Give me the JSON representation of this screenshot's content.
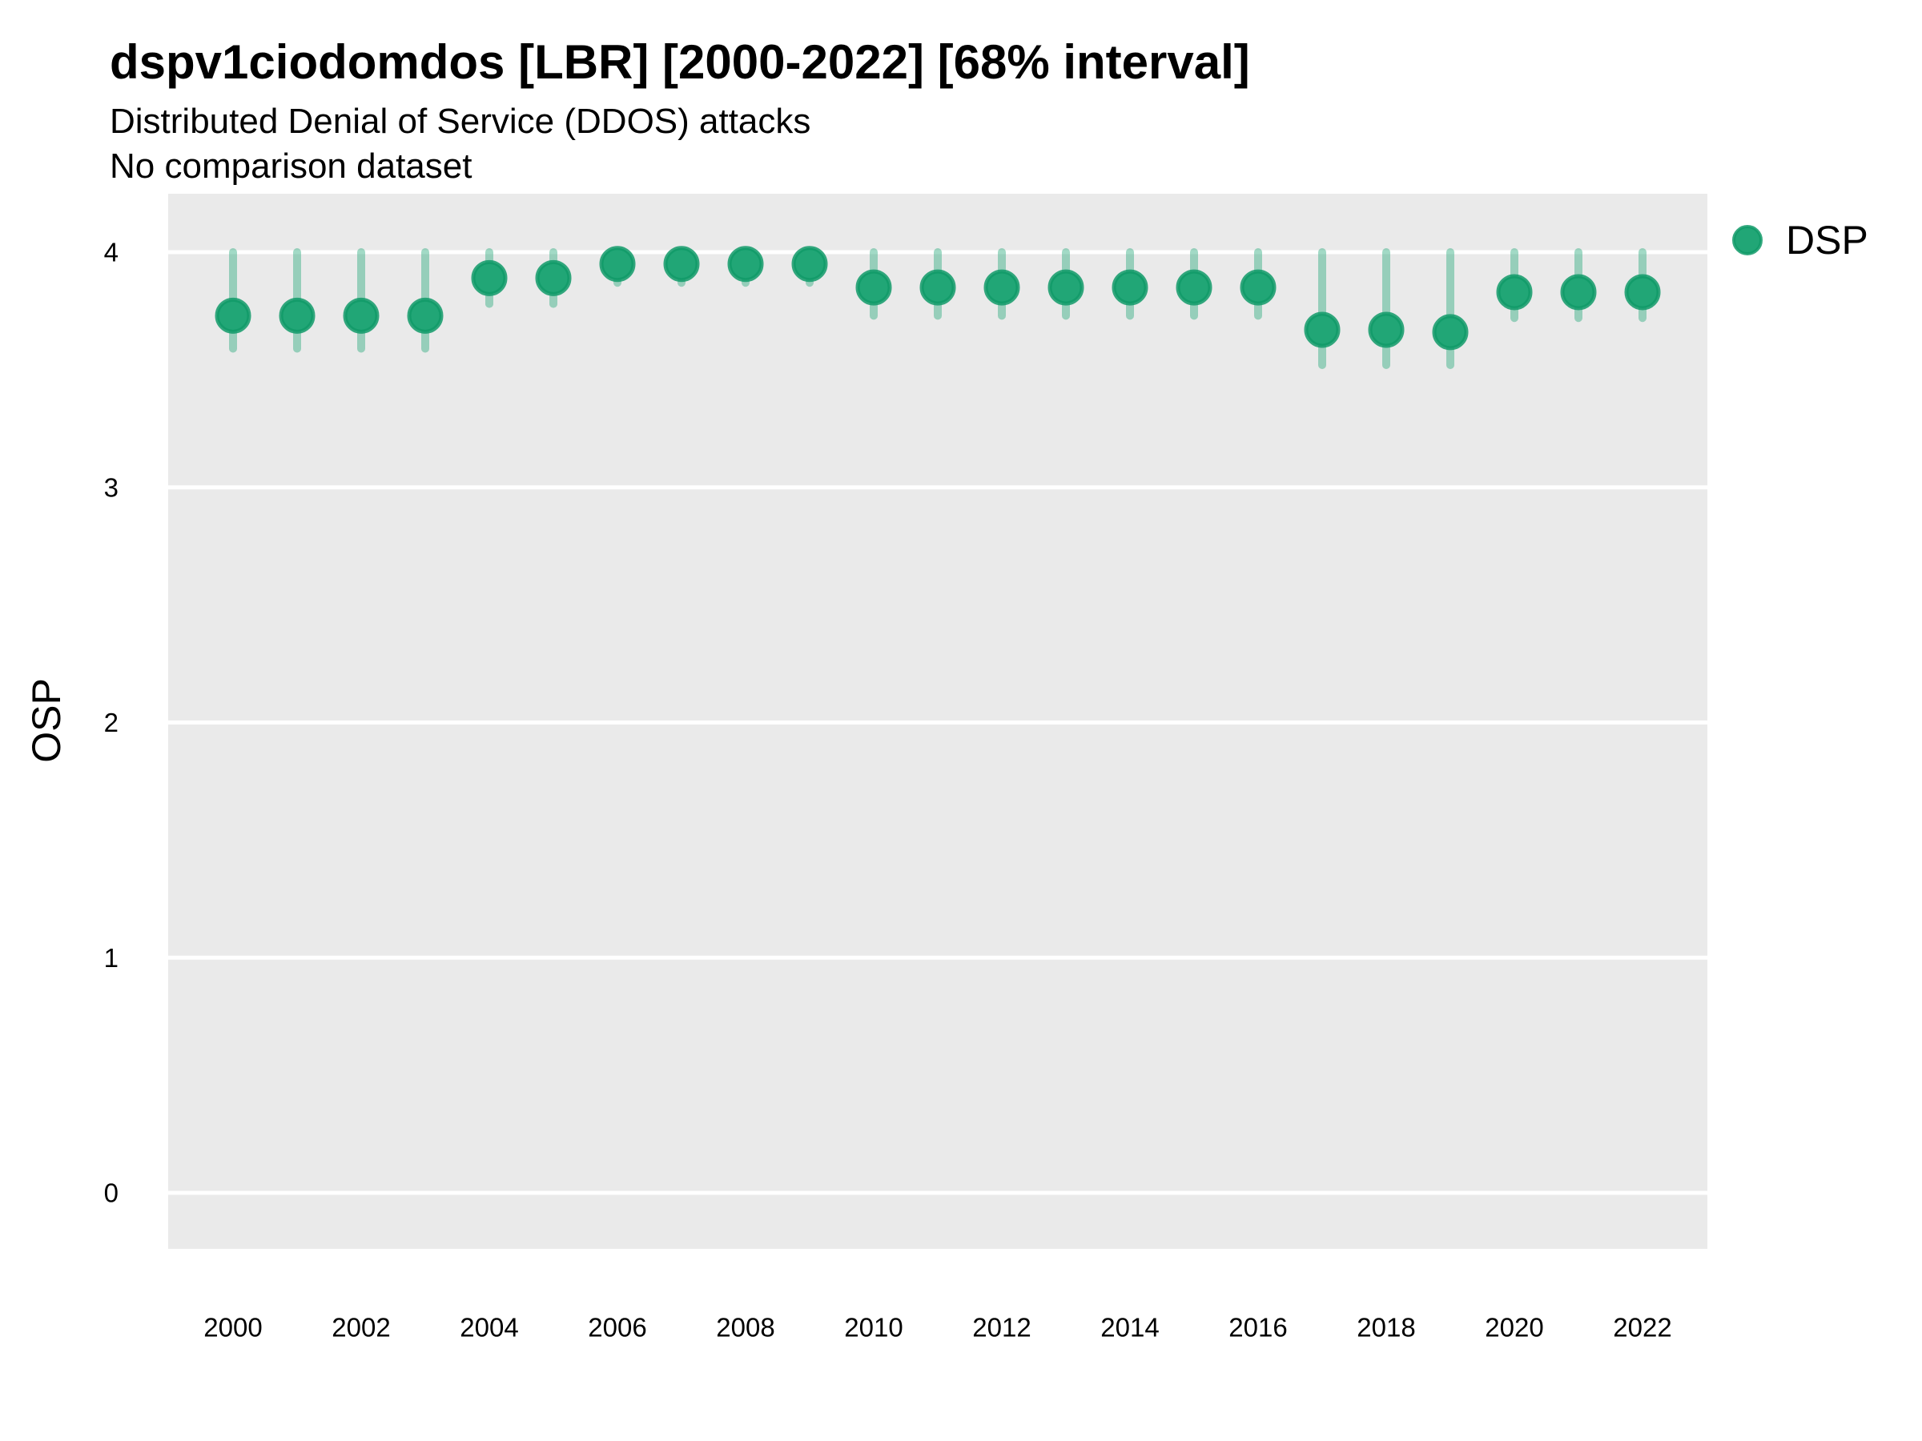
{
  "header": {
    "title": "dspv1ciodomdos [LBR] [2000-2022] [68% interval]",
    "subtitle": "Distributed Denial of Service (DDOS) attacks",
    "note": "No comparison dataset"
  },
  "legend": {
    "label": "DSP",
    "position": "right-top",
    "marker": "circle-icon",
    "marker_color": "#21a676"
  },
  "chart_data": {
    "type": "scatter",
    "title": "dspv1ciodomdos [LBR] [2000-2022] [68% interval]",
    "subtitle": "Distributed Denial of Service (DDOS) attacks",
    "note": "No comparison dataset",
    "interval": "68%",
    "xlabel": "",
    "ylabel": "OSP",
    "x": [
      2000,
      2001,
      2002,
      2003,
      2004,
      2005,
      2006,
      2007,
      2008,
      2009,
      2010,
      2011,
      2012,
      2013,
      2014,
      2015,
      2016,
      2017,
      2018,
      2019,
      2020,
      2021,
      2022
    ],
    "series": [
      {
        "name": "DSP",
        "values": [
          3.73,
          3.73,
          3.73,
          3.73,
          3.89,
          3.89,
          3.95,
          3.95,
          3.95,
          3.95,
          3.85,
          3.85,
          3.85,
          3.85,
          3.85,
          3.85,
          3.85,
          3.67,
          3.67,
          3.66,
          3.83,
          3.83,
          3.83
        ],
        "lower_68": [
          3.59,
          3.59,
          3.59,
          3.59,
          3.78,
          3.78,
          3.87,
          3.87,
          3.87,
          3.87,
          3.73,
          3.73,
          3.73,
          3.73,
          3.73,
          3.73,
          3.73,
          3.52,
          3.52,
          3.52,
          3.72,
          3.72,
          3.72
        ],
        "upper_68": [
          4.0,
          4.0,
          4.0,
          4.0,
          4.0,
          4.0,
          4.0,
          4.0,
          4.0,
          4.0,
          4.0,
          4.0,
          4.0,
          4.0,
          4.0,
          4.0,
          4.0,
          4.0,
          4.0,
          4.0,
          4.0,
          4.0,
          4.0
        ]
      }
    ],
    "x_ticks": [
      2000,
      2002,
      2004,
      2006,
      2008,
      2010,
      2012,
      2014,
      2016,
      2018,
      2020,
      2022
    ],
    "y_ticks": [
      0,
      1,
      2,
      3,
      4
    ],
    "ylim": [
      -0.26,
      4.25
    ],
    "xlim": [
      1999,
      2023
    ],
    "grid": "horizontal-major-only",
    "legend_position": "right-top",
    "colors": {
      "point_fill": "#21a676",
      "point_ring": "#119a68",
      "interval_bar": "rgba(33,166,118,0.42)",
      "panel_bg": "#eaeaea",
      "gridline": "#ffffff",
      "text": "#000000"
    }
  }
}
